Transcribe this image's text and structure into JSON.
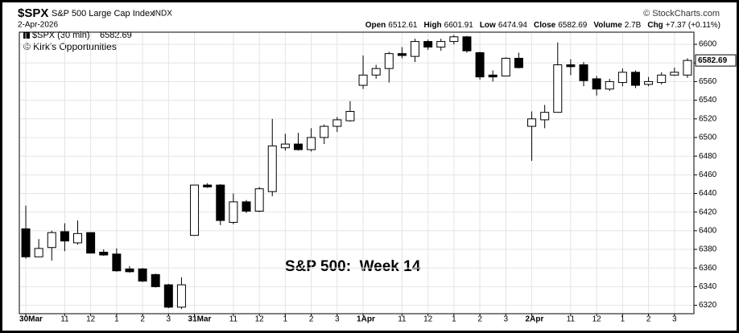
{
  "chart_data": {
    "type": "candlestick",
    "title": "$SPX",
    "subtitle": "S&P 500 Large Cap Index",
    "exchange": "INDX",
    "source": "© StockCharts.com",
    "date": "2-Apr-2026",
    "stats": [
      {
        "label": "Open",
        "value": "6512.61"
      },
      {
        "label": "High",
        "value": "6601.91"
      },
      {
        "label": "Low",
        "value": "6474.94"
      },
      {
        "label": "Close",
        "value": "6582.69"
      },
      {
        "label": "Volume",
        "value": "2.7B"
      },
      {
        "label": "Chg",
        "value": "+7.37 (+0.11%)"
      }
    ],
    "legend": "$SPX (30 min)",
    "last_price": 6582.69,
    "credit": "© Kirk's Opportunities",
    "annotation": "S&P 500:  Week 14",
    "categories": [
      "30Mar",
      null,
      null,
      "11",
      null,
      "12",
      null,
      "1",
      null,
      "2",
      null,
      "3",
      null,
      "31Mar",
      null,
      null,
      "11",
      null,
      "12",
      null,
      "1",
      null,
      "2",
      null,
      "3",
      null,
      "1Apr",
      null,
      null,
      "11",
      null,
      "12",
      null,
      "1",
      null,
      "2",
      null,
      "3",
      null,
      "2Apr",
      null,
      null,
      "11",
      null,
      "12",
      null,
      "1",
      null,
      "2",
      null,
      "3",
      null
    ],
    "open": [
      6402,
      6372,
      6382,
      6399,
      6387,
      6398,
      6377,
      6375,
      6359,
      6359,
      6353,
      6342,
      6318,
      6395,
      6449,
      6449,
      6409,
      6431,
      6421,
      6442,
      6489,
      6493,
      6487,
      6500,
      6512,
      6518,
      6556,
      6567,
      6574,
      6590,
      6587,
      6603,
      6597,
      6603,
      6608,
      6591,
      6567,
      6566,
      6585,
      6512,
      6519,
      6527,
      6578,
      6578,
      6563,
      6552,
      6559,
      6570,
      6557,
      6559,
      6567,
      6567
    ],
    "high": [
      6427,
      6391,
      6400,
      6408,
      6411,
      6398,
      6380,
      6381,
      6362,
      6360,
      6354,
      6343,
      6350,
      6449,
      6451,
      6450,
      6440,
      6433,
      6447,
      6520,
      6504,
      6505,
      6510,
      6514,
      6522,
      6539,
      6588,
      6578,
      6592,
      6597,
      6606,
      6605,
      6606,
      6610,
      6609,
      6592,
      6572,
      6586,
      6591,
      6528,
      6535,
      6602,
      6584,
      6581,
      6566,
      6563,
      6574,
      6572,
      6565,
      6570,
      6575,
      6585
    ],
    "low": [
      6370,
      6372,
      6368,
      6378,
      6385,
      6376,
      6373,
      6356,
      6355,
      6345,
      6339,
      6317,
      6316,
      6395,
      6446,
      6406,
      6407,
      6419,
      6420,
      6437,
      6486,
      6486,
      6485,
      6493,
      6506,
      6517,
      6552,
      6563,
      6559,
      6585,
      6581,
      6594,
      6593,
      6600,
      6591,
      6562,
      6560,
      6566,
      6574,
      6475,
      6510,
      6527,
      6567,
      6555,
      6545,
      6550,
      6555,
      6553,
      6555,
      6557,
      6566,
      6564
    ],
    "close": [
      6372,
      6381,
      6398,
      6389,
      6397,
      6376,
      6374,
      6357,
      6356,
      6346,
      6340,
      6318,
      6342,
      6449,
      6447,
      6411,
      6431,
      6421,
      6445,
      6491,
      6493,
      6487,
      6500,
      6512,
      6519,
      6528,
      6567,
      6574,
      6590,
      6588,
      6603,
      6597,
      6603,
      6608,
      6593,
      6565,
      6565,
      6585,
      6575,
      6520,
      6527,
      6578,
      6576,
      6561,
      6552,
      6560,
      6570,
      6556,
      6560,
      6567,
      6570,
      6582.69
    ],
    "up_color": "#ffffff",
    "down_color": "#000000",
    "ylim": [
      6311,
      6613
    ],
    "yticks": [
      6320,
      6340,
      6360,
      6380,
      6400,
      6420,
      6440,
      6460,
      6480,
      6500,
      6520,
      6540,
      6560,
      6580,
      6600
    ],
    "grid": true
  }
}
